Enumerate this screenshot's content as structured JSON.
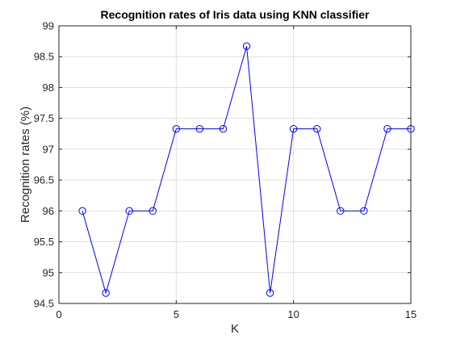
{
  "chart_data": {
    "type": "line",
    "title": "Recognition rates of Iris data using KNN classifier",
    "xlabel": "K",
    "ylabel": "Recognition rates (%)",
    "xlim": [
      0,
      15
    ],
    "ylim": [
      94.5,
      99
    ],
    "xticks": [
      "0",
      "5",
      "10",
      "15"
    ],
    "yticks": [
      "94.5",
      "95",
      "95.5",
      "96",
      "96.5",
      "97",
      "97.5",
      "98",
      "98.5",
      "99"
    ],
    "grid": true,
    "series": [
      {
        "x": [
          1,
          2,
          3,
          4,
          5,
          6,
          7,
          8,
          9,
          10,
          11,
          12,
          13,
          14,
          15
        ],
        "values": [
          96.0,
          94.67,
          96.0,
          96.0,
          97.33,
          97.33,
          97.33,
          98.67,
          94.67,
          97.33,
          97.33,
          96.0,
          96.0,
          97.33,
          97.33
        ],
        "color": "#0000ff",
        "marker": "circle"
      }
    ]
  }
}
